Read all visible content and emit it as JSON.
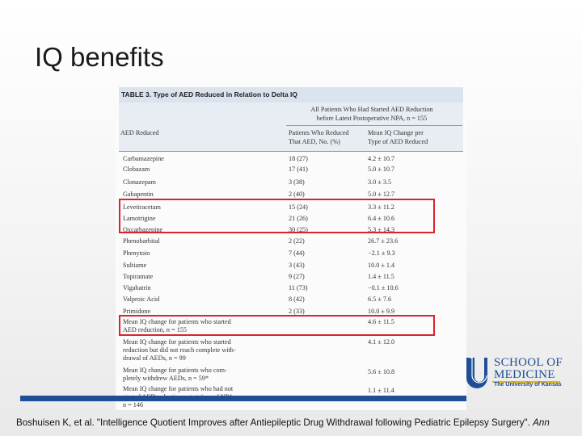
{
  "slide": {
    "title": "IQ benefits",
    "citation": "Boshuisen K, et al. \"Intelligence Quotient Improves after Antiepileptic Drug Withdrawal following Pediatric Epilepsy Surgery\".",
    "citation_journal": "Ann"
  },
  "logo": {
    "line1": "SCHOOL OF",
    "line2": "MEDICINE",
    "line3": "The University of Kansas",
    "accent_color": "#1f4e96",
    "stripe_color": "#e8b600"
  },
  "table": {
    "caption": "TABLE 3. Type of AED Reduced in Relation to Delta IQ",
    "group_header": [
      "All Patients Who Had Started AED Reduction",
      "before Latest Postoperative NPA, n = 155"
    ],
    "col1_header": "AED Reduced",
    "col2_header": [
      "Patients Who Reduced",
      "That AED, No. (%)"
    ],
    "col3_header": [
      "Mean IQ Change per",
      "Type of AED Reduced"
    ],
    "rows": [
      {
        "drug": "Carbamazepine",
        "patients": "18 (27)",
        "change": "4.2 ± 10.7"
      },
      {
        "drug": "Clobazam",
        "patients": "17 (41)",
        "change": "5.0 ± 10.7"
      },
      {
        "drug": "Clonazepam",
        "patients": "3 (38)",
        "change": "3.0 ± 3.5"
      },
      {
        "drug": "Gabapentin",
        "patients": "2 (40)",
        "change": "5.0 ± 12.7"
      },
      {
        "drug": "Levetiracetam",
        "patients": "15 (24)",
        "change": "3.3 ± 11.2"
      },
      {
        "drug": "Lamotrigine",
        "patients": "21 (26)",
        "change": "6.4 ± 10.6"
      },
      {
        "drug": "Oxcarbazepine",
        "patients": "30 (25)",
        "change": "5.3 ± 14.3"
      },
      {
        "drug": "Phenobarbital",
        "patients": "2 (22)",
        "change": "26.7 ± 23.6"
      },
      {
        "drug": "Phenytoin",
        "patients": "7 (44)",
        "change": "−2.1 ± 9.3"
      },
      {
        "drug": "Sultiame",
        "patients": "3 (43)",
        "change": "10.0 ± 1.4"
      },
      {
        "drug": "Topiramate",
        "patients": "9 (27)",
        "change": "1.4 ± 11.5"
      },
      {
        "drug": "Vigabatrin",
        "patients": "11 (73)",
        "change": "−0.1 ± 10.6"
      },
      {
        "drug": "Valproic Acid",
        "patients": "8 (42)",
        "change": "6.5 ± 7.6"
      },
      {
        "drug": "Primidone",
        "patients": "2 (33)",
        "change": "10.0 ± 9.9"
      }
    ],
    "summary": [
      {
        "lines": [
          "Mean IQ change for patients who started",
          "AED reduction, n = 155"
        ],
        "change": "4.6 ± 11.5"
      },
      {
        "lines": [
          "Mean IQ change for patients who started",
          "reduction but did not reach complete with-",
          "drawal of AEDs, n = 99"
        ],
        "change": "4.1 ± 12.0"
      },
      {
        "lines": [
          "Mean IQ change for patients who com-",
          "pletely withdrew AEDs, n = 59*"
        ],
        "change": "5.6 ± 10.8"
      },
      {
        "lines": [
          "Mean IQ change for patients who had not",
          "started AED reduction yet at time of NPA,",
          "n = 146"
        ],
        "change": "1.1 ± 11.4"
      }
    ]
  },
  "highlight_color": "#d9232d"
}
